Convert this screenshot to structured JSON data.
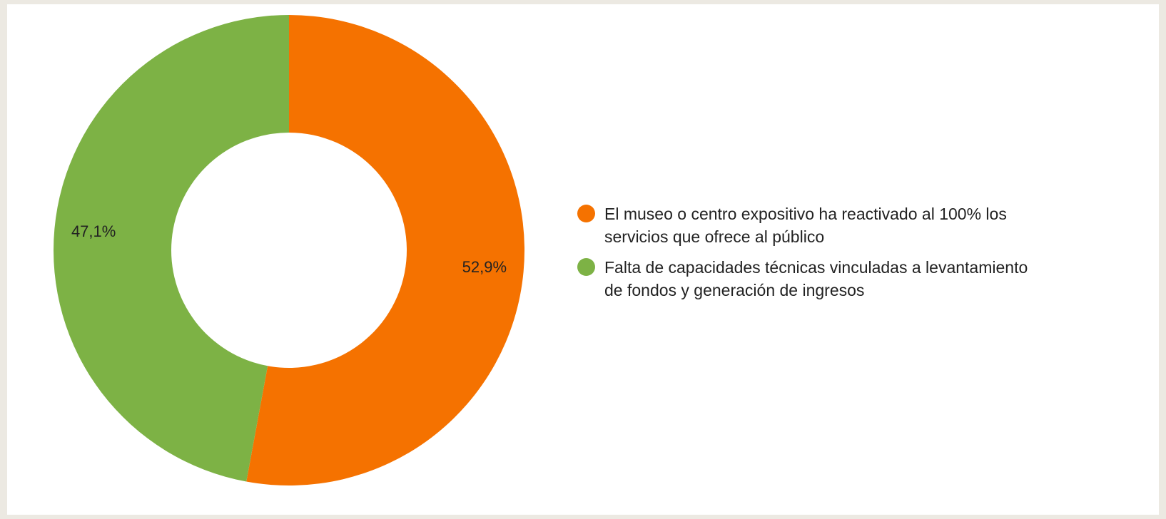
{
  "chart_data": {
    "type": "pie",
    "variant": "donut",
    "title": "",
    "categories": [
      "El museo o centro expositivo ha reactivado al 100% los servicios que ofrece al público",
      "Falta de capacidades técnicas vinculadas a levantamiento de fondos y generación de ingresos"
    ],
    "values": [
      52.9,
      47.1
    ],
    "value_labels": [
      "52,9%",
      "47,1%"
    ],
    "colors": [
      "#f57200",
      "#7db245"
    ],
    "legend": {
      "position": "right",
      "entries": [
        {
          "label_line1": "El museo o centro expositivo ha reactivado al 100% los",
          "label_line2": "servicios que ofrece al público",
          "color": "#f57200"
        },
        {
          "label_line1": "Falta de capacidades técnicas vinculadas a levantamiento",
          "label_line2": "de fondos y generación de ingresos",
          "color": "#7db245"
        }
      ]
    }
  }
}
